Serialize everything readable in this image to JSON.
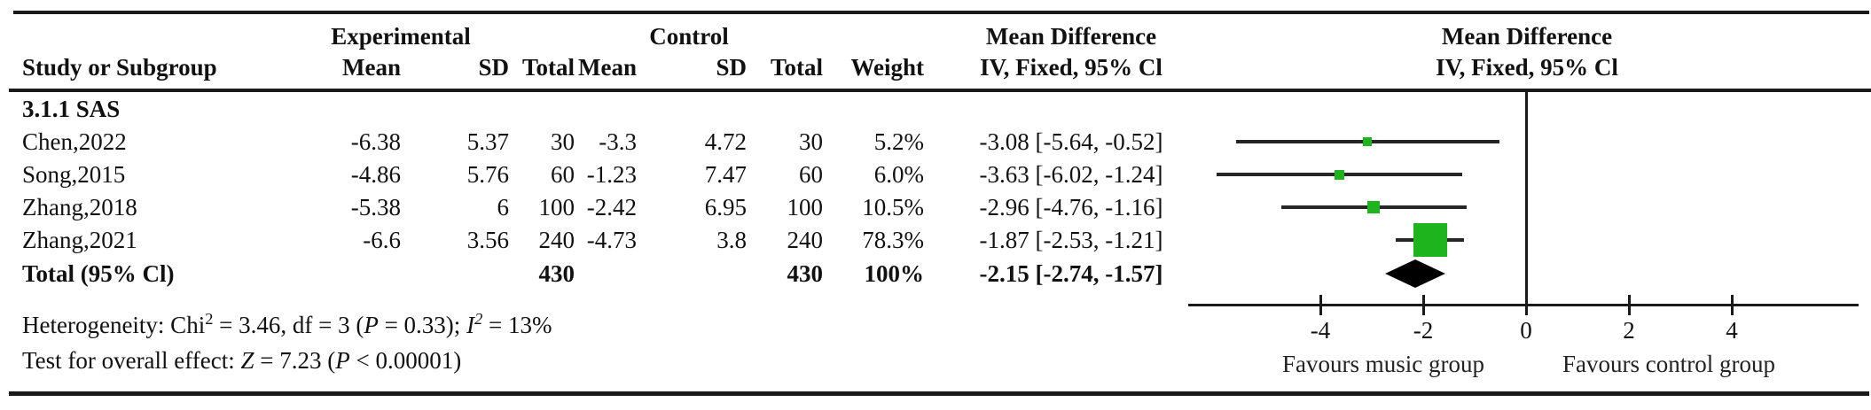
{
  "figure": {
    "headers": {
      "group_experimental": "Experimental",
      "group_control": "Control",
      "md_table": "Mean Difference",
      "md_plot": "Mean Difference",
      "study": "Study or Subgroup",
      "exp_mean": "Mean",
      "exp_sd": "SD",
      "exp_total": "Total",
      "ctl_mean": "Mean",
      "ctl_sd": "SD",
      "ctl_total": "Total",
      "weight": "Weight",
      "iv_table": "IV, Fixed, 95% Cl",
      "iv_plot": "IV, Fixed, 95% Cl"
    },
    "subgroup_label": "3.1.1 SAS",
    "rows": [
      {
        "study": "Chen,2022",
        "exp_mean": "-6.38",
        "exp_sd": "5.37",
        "exp_total": "30",
        "ctl_mean": "-3.3",
        "ctl_sd": "4.72",
        "ctl_total": "30",
        "weight": "5.2%",
        "ci": "-3.08 [-5.64, -0.52]"
      },
      {
        "study": "Song,2015",
        "exp_mean": "-4.86",
        "exp_sd": "5.76",
        "exp_total": "60",
        "ctl_mean": "-1.23",
        "ctl_sd": "7.47",
        "ctl_total": "60",
        "weight": "6.0%",
        "ci": "-3.63 [-6.02, -1.24]"
      },
      {
        "study": "Zhang,2018",
        "exp_mean": "-5.38",
        "exp_sd": "6",
        "exp_total": "100",
        "ctl_mean": "-2.42",
        "ctl_sd": "6.95",
        "ctl_total": "100",
        "weight": "10.5%",
        "ci": "-2.96 [-4.76, -1.16]"
      },
      {
        "study": "Zhang,2021",
        "exp_mean": "-6.6",
        "exp_sd": "3.56",
        "exp_total": "240",
        "ctl_mean": "-4.73",
        "ctl_sd": "3.8",
        "ctl_total": "240",
        "weight": "78.3%",
        "ci": "-1.87 [-2.53, -1.21]"
      }
    ],
    "total_row": {
      "study": "Total (95% Cl)",
      "exp_total": "430",
      "ctl_total": "430",
      "weight": "100%",
      "ci": "-2.15 [-2.74, -1.57]"
    },
    "footnotes": {
      "heterogeneity": [
        {
          "text": "Heterogeneity: Chi"
        },
        {
          "text": "2",
          "sup": true
        },
        {
          "text": " = 3.46, df = 3 ("
        },
        {
          "text": "P",
          "italic": true
        },
        {
          "text": " = 0.33); "
        },
        {
          "text": "I",
          "italic": true
        },
        {
          "text": "2",
          "sup": true,
          "italic": true
        },
        {
          "text": " = 13%"
        }
      ],
      "overall": [
        {
          "text": "Test for overall effect: "
        },
        {
          "text": "Z",
          "italic": true
        },
        {
          "text": " = 7.23 ("
        },
        {
          "text": "P",
          "italic": true
        },
        {
          "text": " < 0.00001)"
        }
      ]
    }
  },
  "chart_data": {
    "type": "forest",
    "title": "Mean Difference, IV, Fixed, 95% Cl",
    "subgroup": "3.1.1 SAS",
    "studies": [
      {
        "name": "Chen,2022",
        "md": -3.08,
        "ci_low": -5.64,
        "ci_high": -0.52,
        "weight_pct": 5.2
      },
      {
        "name": "Song,2015",
        "md": -3.63,
        "ci_low": -6.02,
        "ci_high": -1.24,
        "weight_pct": 6.0
      },
      {
        "name": "Zhang,2018",
        "md": -2.96,
        "ci_low": -4.76,
        "ci_high": -1.16,
        "weight_pct": 10.5
      },
      {
        "name": "Zhang,2021",
        "md": -1.87,
        "ci_low": -2.53,
        "ci_high": -1.21,
        "weight_pct": 78.3
      }
    ],
    "total": {
      "name": "Total (95% Cl)",
      "md": -2.15,
      "ci_low": -2.74,
      "ci_high": -1.57,
      "weight_pct": 100
    },
    "axis": {
      "ticks": [
        -4,
        -2,
        0,
        2,
        4
      ],
      "xlim": [
        -6.6,
        6.5
      ],
      "favours_left": "Favours music group",
      "favours_right": "Favours control group"
    },
    "totals": {
      "experimental_n": 430,
      "control_n": 430
    },
    "heterogeneity": {
      "chi2": 3.46,
      "df": 3,
      "p": 0.33,
      "i2_pct": 13
    },
    "overall_effect": {
      "z": 7.23,
      "p_text": "P < 0.00001"
    },
    "marker_color": "#1eb41e",
    "line_color": "#262626"
  }
}
